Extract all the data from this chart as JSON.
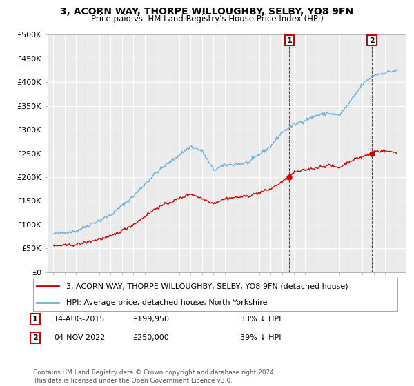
{
  "title": "3, ACORN WAY, THORPE WILLOUGHBY, SELBY, YO8 9FN",
  "subtitle": "Price paid vs. HM Land Registry's House Price Index (HPI)",
  "legend_line1": "3, ACORN WAY, THORPE WILLOUGHBY, SELBY, YO8 9FN (detached house)",
  "legend_line2": "HPI: Average price, detached house, North Yorkshire",
  "footer": "Contains HM Land Registry data © Crown copyright and database right 2024.\nThis data is licensed under the Open Government Licence v3.0.",
  "annotation1_date": "14-AUG-2015",
  "annotation1_price": "£199,950",
  "annotation1_hpi": "33% ↓ HPI",
  "annotation2_date": "04-NOV-2022",
  "annotation2_price": "£250,000",
  "annotation2_hpi": "39% ↓ HPI",
  "sale1_x": 2015.62,
  "sale1_y": 199950,
  "sale2_x": 2022.84,
  "sale2_y": 250000,
  "hpi_color": "#6aaed6",
  "price_color": "#cc0000",
  "vline_color": "#cc0000",
  "background_color": "#ffffff",
  "plot_bg_color": "#ebebeb",
  "ylim": [
    0,
    500000
  ],
  "xlim_start": 1994.5,
  "xlim_end": 2025.8,
  "hpi_keypoints_x": [
    1995,
    1997,
    2000,
    2002,
    2004,
    2007,
    2008,
    2009,
    2010,
    2012,
    2014,
    2015,
    2016,
    2017,
    2018,
    2019,
    2020,
    2021,
    2022,
    2023,
    2024,
    2025
  ],
  "hpi_keypoints_y": [
    80000,
    87000,
    120000,
    160000,
    210000,
    265000,
    255000,
    215000,
    225000,
    230000,
    265000,
    295000,
    310000,
    320000,
    330000,
    335000,
    330000,
    360000,
    395000,
    415000,
    420000,
    425000
  ],
  "price_keypoints_x": [
    1995,
    1997,
    2000,
    2002,
    2004,
    2007,
    2008,
    2009,
    2010,
    2012,
    2014,
    2015.62,
    2016,
    2017,
    2018,
    2019,
    2020,
    2021,
    2022.84,
    2023,
    2024,
    2025
  ],
  "price_keypoints_y": [
    55000,
    58000,
    75000,
    100000,
    135000,
    165000,
    155000,
    145000,
    155000,
    160000,
    175000,
    199950,
    210000,
    215000,
    220000,
    225000,
    220000,
    235000,
    250000,
    255000,
    255000,
    252000
  ],
  "yticks": [
    0,
    50000,
    100000,
    150000,
    200000,
    250000,
    300000,
    350000,
    400000,
    450000,
    500000
  ]
}
